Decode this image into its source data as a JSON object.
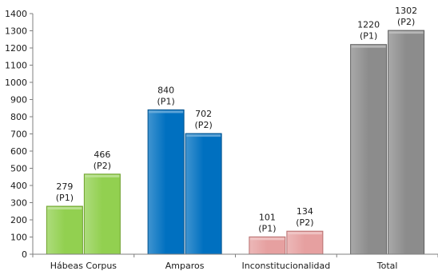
{
  "chart_data": {
    "type": "bar",
    "title": "",
    "xlabel": "",
    "ylabel": "",
    "ylim": [
      0,
      1400
    ],
    "yticks": [
      0,
      100,
      200,
      300,
      400,
      500,
      600,
      700,
      800,
      900,
      1000,
      1100,
      1200,
      1300,
      1400
    ],
    "grid": false,
    "legend": "none",
    "categories": [
      "Hábeas Corpus",
      "Amparos",
      "Inconstitucionalidad",
      "Total"
    ],
    "category_colors": [
      "#92d050",
      "#0070c0",
      "#e6a0a0",
      "#8c8c8c"
    ],
    "category_edge_colors": [
      "#6fa12e",
      "#00508c",
      "#b76f6f",
      "#5f5f5f"
    ],
    "series": [
      {
        "label": "(P1)",
        "values": [
          279,
          840,
          101,
          1220
        ]
      },
      {
        "label": "(P2)",
        "values": [
          466,
          702,
          134,
          1302
        ]
      }
    ],
    "value_labels": [
      [
        "279",
        "840",
        "101",
        "1220"
      ],
      [
        "466",
        "702",
        "134",
        "1302"
      ]
    ],
    "series_labels": [
      [
        "(P1)",
        "(P1)",
        "(P1)",
        "(P1)"
      ],
      [
        "(P2)",
        "(P2)",
        "(P2)",
        "(P2)"
      ]
    ]
  }
}
